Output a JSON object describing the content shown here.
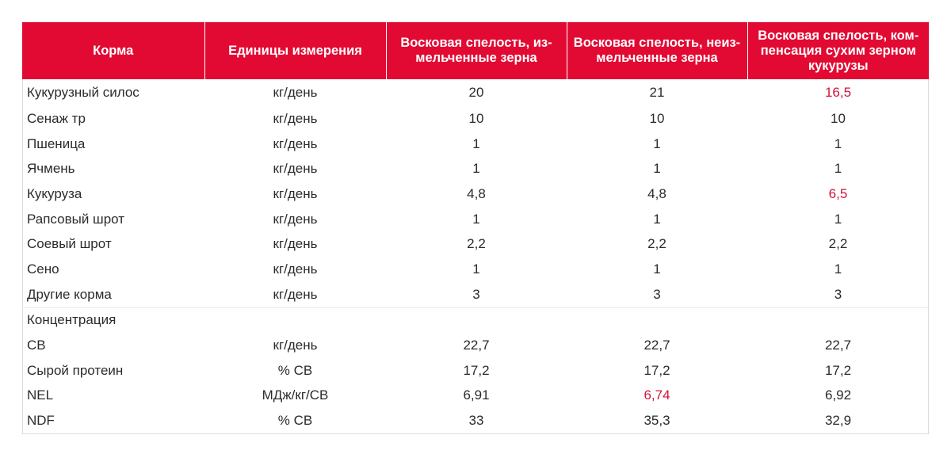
{
  "header": {
    "col_feed": "Корма",
    "col_units": "Единицы измерения",
    "col_var1": "Восковая спелость, из-мельченные зерна",
    "col_var2": "Восковая спелость, неиз-мельченные зерна",
    "col_var3": "Восковая  спелость, ком-пенсация сухим зерном кукурузы"
  },
  "rows": [
    {
      "name": "Кукурузный силос",
      "unit": "кг/день",
      "v1": "20",
      "v2": "21",
      "v3": "16,5"
    },
    {
      "name": "Сенаж тр",
      "unit": "кг/день",
      "v1": "10",
      "v2": "10",
      "v3": "10"
    },
    {
      "name": "Пшеница",
      "unit": "кг/день",
      "v1": "1",
      "v2": "1",
      "v3": "1"
    },
    {
      "name": "Ячмень",
      "unit": "кг/день",
      "v1": "1",
      "v2": "1",
      "v3": "1"
    },
    {
      "name": "Кукуруза",
      "unit": "кг/день",
      "v1": "4,8",
      "v2": "4,8",
      "v3": "6,5"
    },
    {
      "name": "Рапсовый шрот",
      "unit": "кг/день",
      "v1": "1",
      "v2": "1",
      "v3": "1"
    },
    {
      "name": "Соевый шрот",
      "unit": "кг/день",
      "v1": "2,2",
      "v2": "2,2",
      "v3": "2,2"
    },
    {
      "name": "Сено",
      "unit": "кг/день",
      "v1": "1",
      "v2": "1",
      "v3": "1"
    },
    {
      "name": "Другие корма",
      "unit": "кг/день",
      "v1": "3",
      "v2": "3",
      "v3": "3"
    }
  ],
  "section_label": "Концентрация",
  "concentration_rows": [
    {
      "name": "СВ",
      "unit": "кг/день",
      "v1": "22,7",
      "v2": "22,7",
      "v3": "22,7"
    },
    {
      "name": "Сырой протеин",
      "unit": "% СВ",
      "v1": "17,2",
      "v2": "17,2",
      "v3": "17,2"
    },
    {
      "name": "NEL",
      "unit": "МДж/кг/СВ",
      "v1": "6,91",
      "v2": "6,74",
      "v3": "6,92"
    },
    {
      "name": "NDF",
      "unit": "% СВ",
      "v1": "33",
      "v2": "35,3",
      "v3": "32,9"
    }
  ],
  "colors": {
    "header_bg": "#e20a33",
    "header_text": "#ffffff",
    "highlight_text": "#d0143a",
    "body_text": "#2b2b2b"
  }
}
